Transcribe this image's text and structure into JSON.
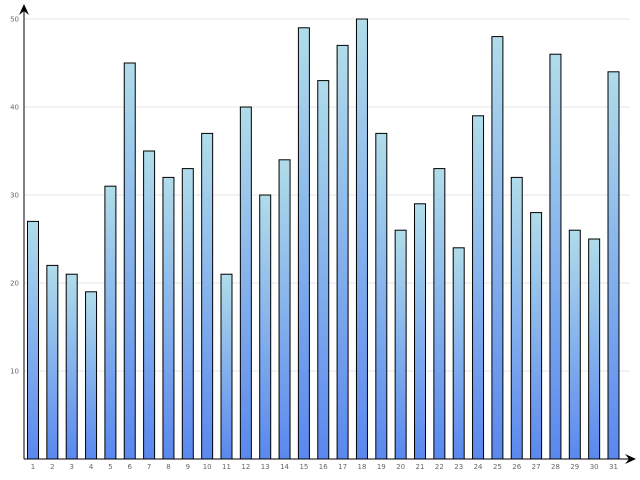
{
  "chart_data": {
    "type": "bar",
    "title": "",
    "xlabel": "",
    "ylabel": "",
    "categories": [
      "1",
      "2",
      "3",
      "4",
      "5",
      "6",
      "7",
      "8",
      "9",
      "10",
      "11",
      "12",
      "13",
      "14",
      "15",
      "16",
      "17",
      "18",
      "19",
      "20",
      "21",
      "22",
      "23",
      "24",
      "25",
      "26",
      "27",
      "28",
      "29",
      "30",
      "31"
    ],
    "values": [
      27,
      22,
      21,
      19,
      31,
      45,
      35,
      32,
      33,
      37,
      21,
      40,
      30,
      34,
      49,
      43,
      47,
      50,
      37,
      26,
      29,
      33,
      24,
      39,
      48,
      32,
      28,
      46,
      26,
      25,
      44
    ],
    "ylim": [
      0,
      50
    ],
    "yticks": [
      10,
      20,
      30,
      40,
      50
    ],
    "grid": true,
    "legend": "none",
    "colors": {
      "bar_top": "#b0dcea",
      "bar_bottom": "#5a88ee",
      "bar_stroke": "#000000",
      "grid": "#e4e4e4",
      "axis": "#000000",
      "tick_text": "#666666"
    }
  }
}
